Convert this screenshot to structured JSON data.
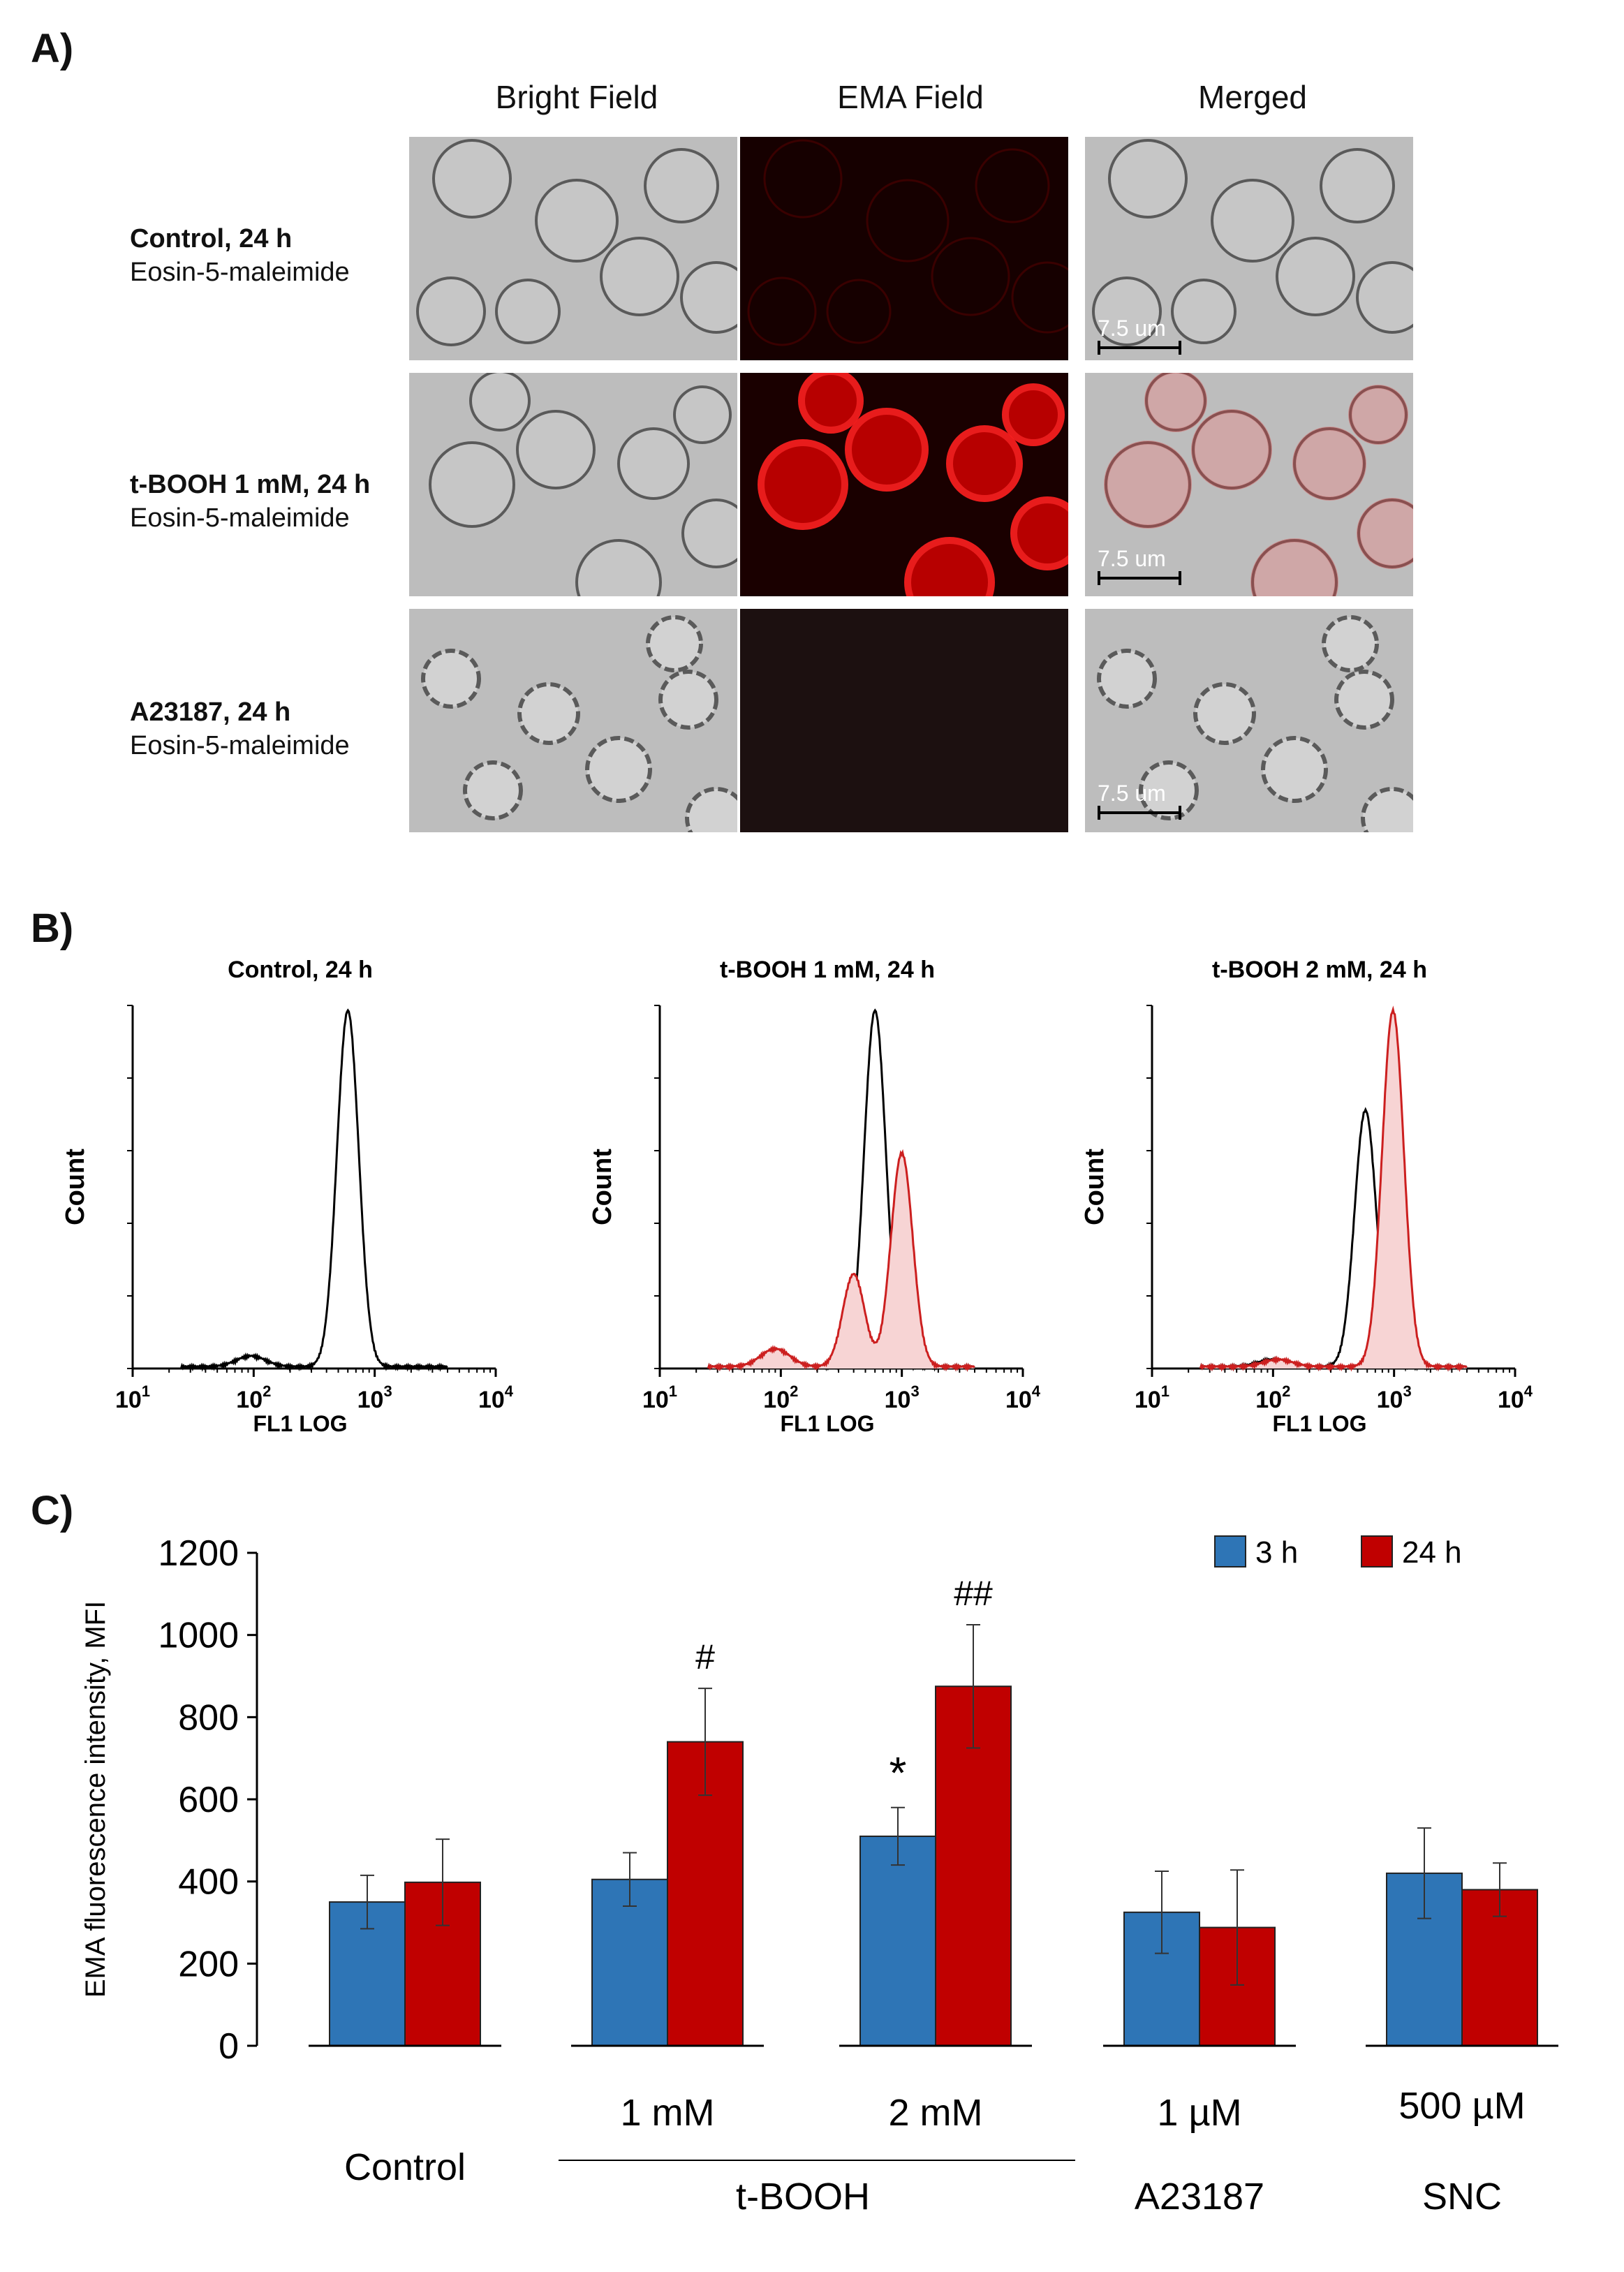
{
  "panels": {
    "a": "A)",
    "b": "B)",
    "c": "C)"
  },
  "panel_a": {
    "columns": [
      "Bright Field",
      "EMA Field",
      "Merged"
    ],
    "rows": [
      {
        "title": "Control, 24 h",
        "subtitle": "Eosin-5-maleimide",
        "ema_level": 0.15
      },
      {
        "title": "t-BOOH 1 mM, 24 h",
        "subtitle": "Eosin-5-maleimide",
        "ema_level": 1.0
      },
      {
        "title": "A23187, 24 h",
        "subtitle": "Eosin-5-maleimide",
        "ema_level": 0.0
      }
    ],
    "scale_label": "7.5 um"
  },
  "chart_data": [
    {
      "type": "histogram",
      "title": "Control, 24 h",
      "xlabel": "FL1 LOG",
      "ylabel": "Count",
      "x_scale": "log",
      "xlim": [
        10,
        10000
      ],
      "xticks": [
        "10^1",
        "10^2",
        "10^3",
        "10^4"
      ],
      "series": [
        {
          "color": "#000000",
          "filled": false,
          "peaks": [
            {
              "center": 600,
              "height": 1.0
            },
            {
              "center": 95,
              "height": 0.03
            }
          ]
        }
      ]
    },
    {
      "type": "histogram",
      "title": "t-BOOH 1 mM, 24 h",
      "xlabel": "FL1 LOG",
      "ylabel": "Count",
      "x_scale": "log",
      "xlim": [
        10,
        10000
      ],
      "xticks": [
        "10^1",
        "10^2",
        "10^3",
        "10^4"
      ],
      "series": [
        {
          "color": "#000000",
          "filled": false,
          "peaks": [
            {
              "center": 600,
              "height": 1.0
            },
            {
              "center": 95,
              "height": 0.03
            }
          ]
        },
        {
          "color": "#cc1f1f",
          "filled": true,
          "fill": "#f7d4d4",
          "peaks": [
            {
              "center": 1000,
              "height": 0.6
            },
            {
              "center": 400,
              "height": 0.26
            },
            {
              "center": 90,
              "height": 0.05
            }
          ]
        }
      ]
    },
    {
      "type": "histogram",
      "title": "t-BOOH 2 mM, 24 h",
      "xlabel": "FL1 LOG",
      "ylabel": "Count",
      "x_scale": "log",
      "xlim": [
        10,
        10000
      ],
      "xticks": [
        "10^1",
        "10^2",
        "10^3",
        "10^4"
      ],
      "series": [
        {
          "color": "#000000",
          "filled": false,
          "peaks": [
            {
              "center": 580,
              "height": 0.72
            },
            {
              "center": 100,
              "height": 0.02
            }
          ]
        },
        {
          "color": "#cc1f1f",
          "filled": true,
          "fill": "#f7d4d4",
          "peaks": [
            {
              "center": 980,
              "height": 1.0
            },
            {
              "center": 110,
              "height": 0.02
            }
          ]
        }
      ]
    },
    {
      "type": "bar",
      "ylabel": "EMA fluorescence intensity, MFI",
      "ylim": [
        0,
        1200
      ],
      "yticks": [
        0,
        200,
        400,
        600,
        800,
        1000,
        1200
      ],
      "legend": {
        "position": "top-right"
      },
      "series": [
        {
          "name": "3 h",
          "color": "#2e75b6",
          "values": [
            350,
            405,
            510,
            325,
            420
          ],
          "errors": [
            65,
            65,
            70,
            100,
            110
          ]
        },
        {
          "name": "24 h",
          "color": "#c00000",
          "values": [
            398,
            740,
            875,
            288,
            380
          ],
          "errors": [
            105,
            130,
            150,
            140,
            65
          ]
        }
      ],
      "categories": [
        "Control",
        "1 mM",
        "2 mM",
        "1 µM",
        "500 µM"
      ],
      "group_labels": [
        "t-BOOH",
        "A23187",
        "SNC"
      ],
      "annotations": [
        {
          "category": "1 mM",
          "series": "24 h",
          "text": "#"
        },
        {
          "category": "2 mM",
          "series": "24 h",
          "text": "##"
        },
        {
          "category": "2 mM",
          "series": "3 h",
          "text": "*"
        }
      ]
    }
  ]
}
